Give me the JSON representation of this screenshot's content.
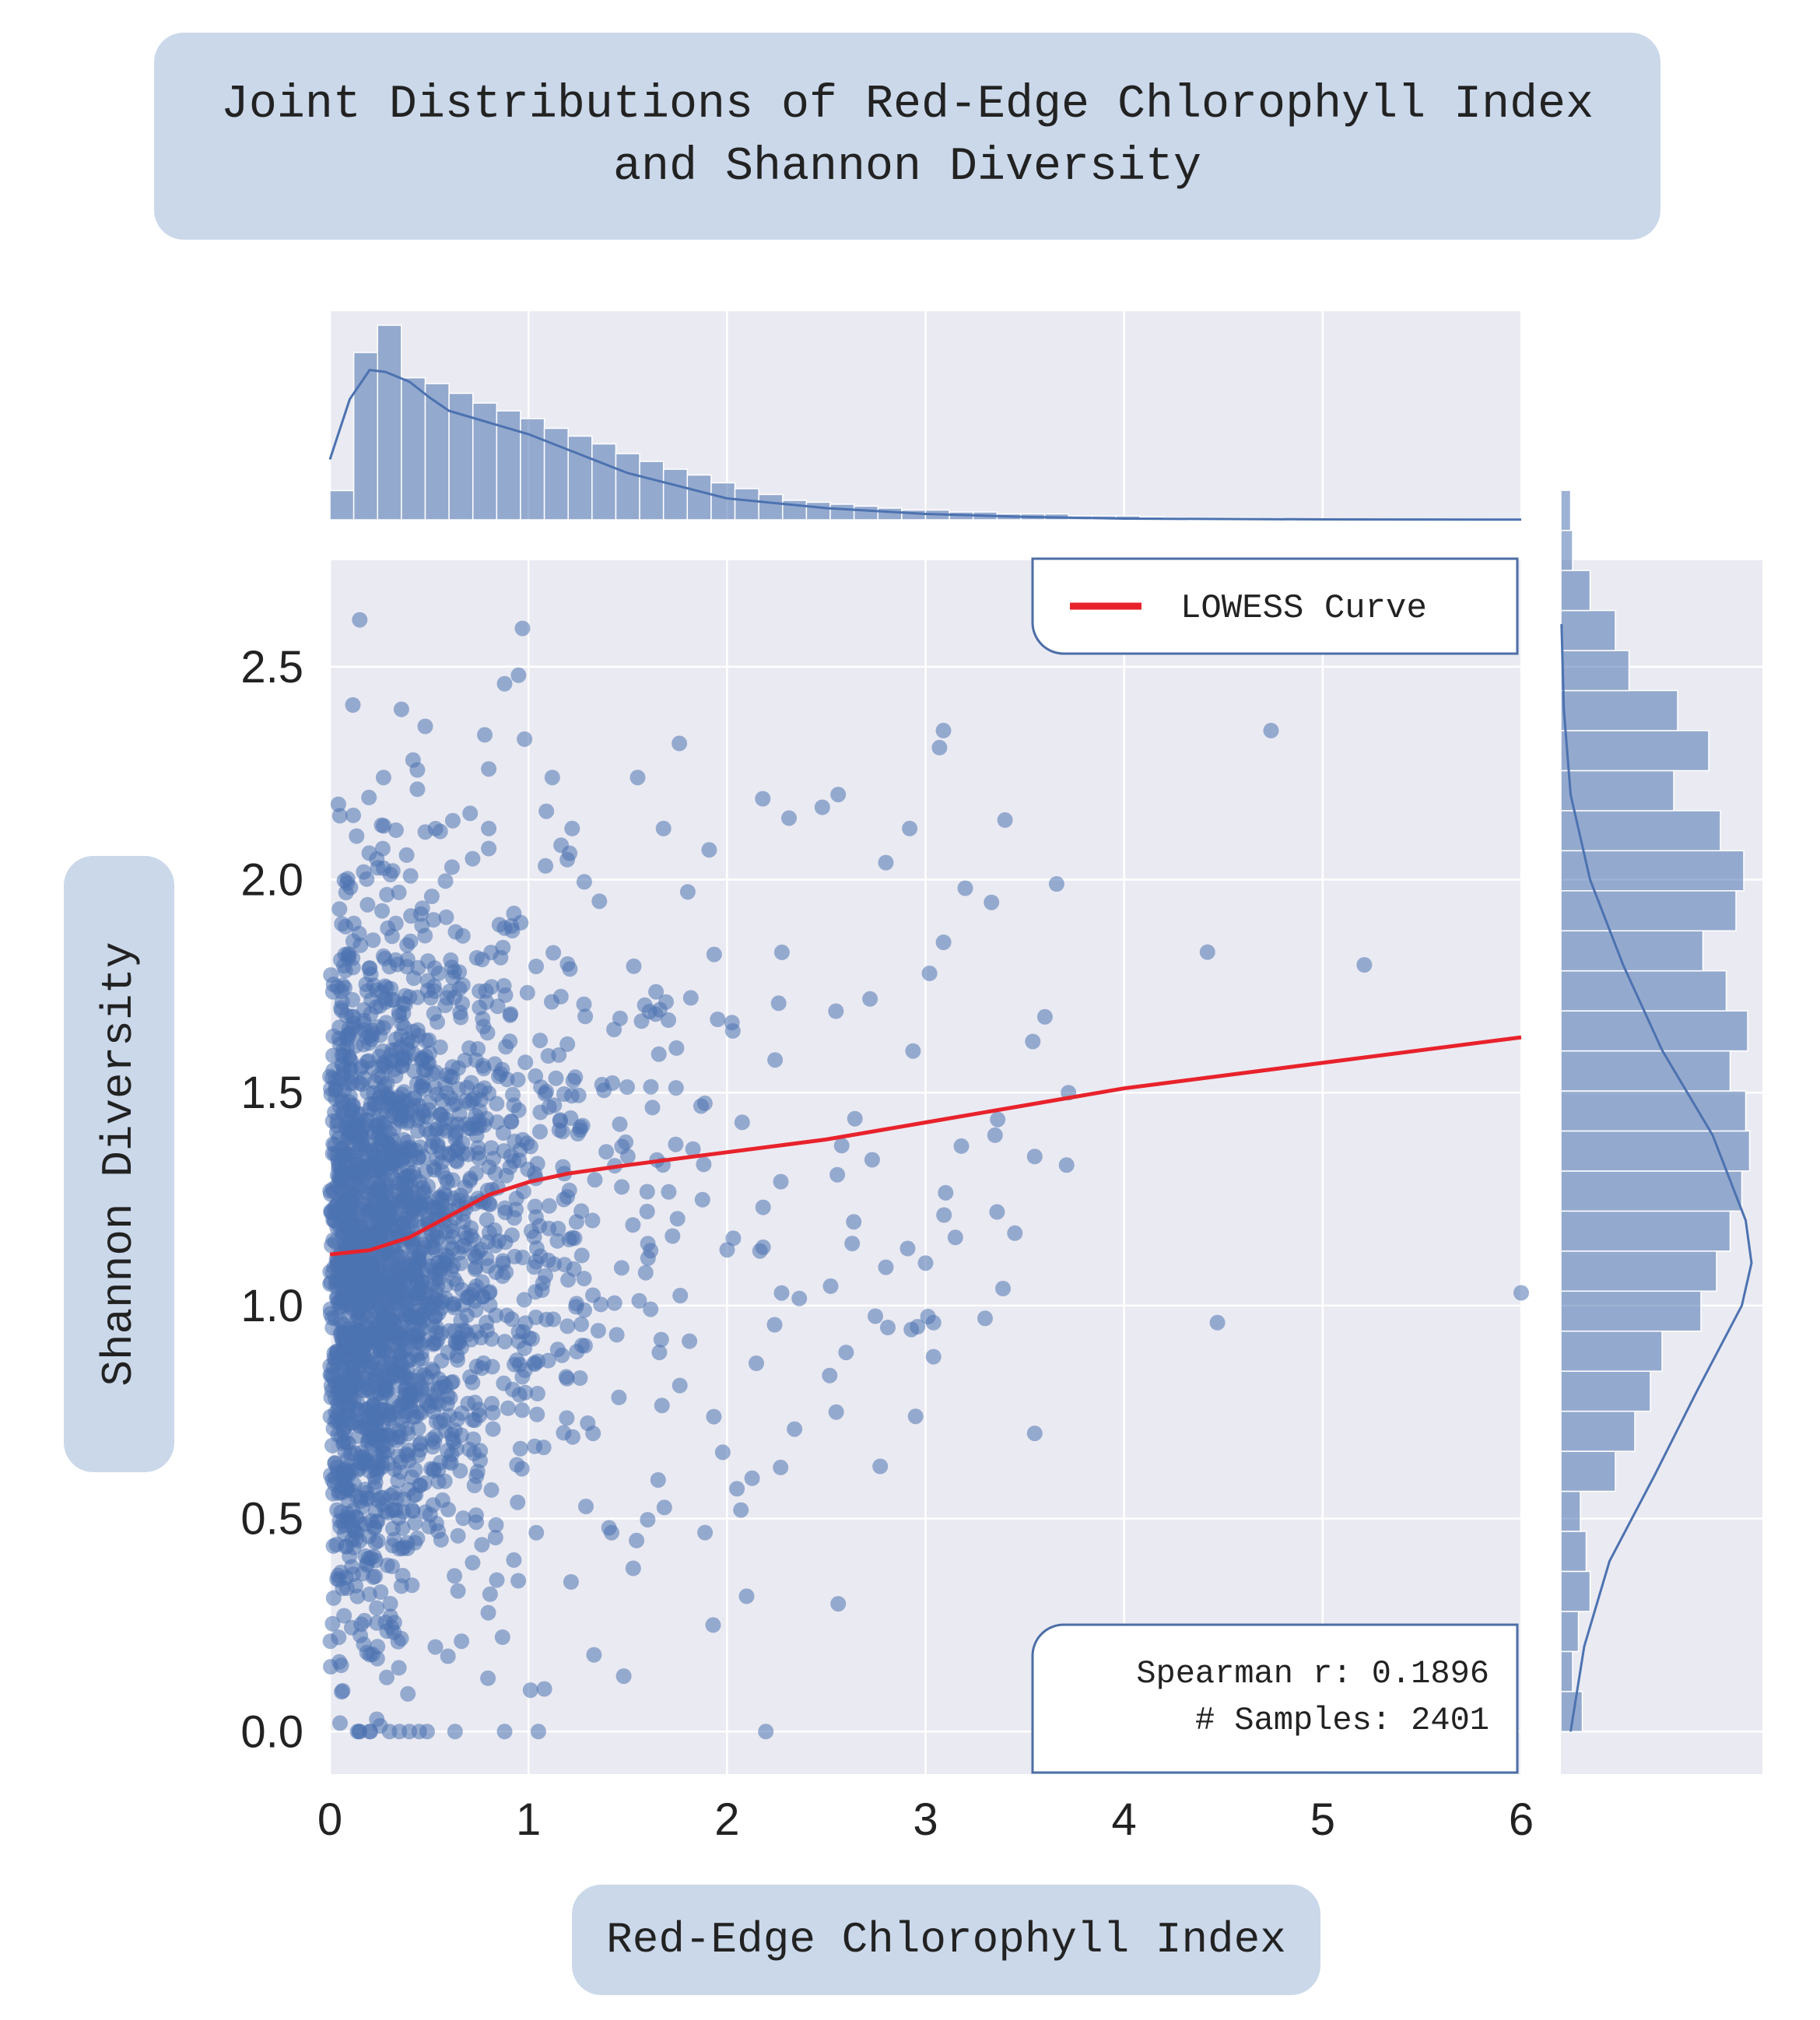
{
  "chart_data": {
    "type": "scatter",
    "title_lines": [
      "Joint Distributions of Red-Edge Chlorophyll Index",
      "and Shannon Diversity"
    ],
    "xlabel": "Red-Edge Chlorophyll Index",
    "ylabel": "Shannon Diversity",
    "xlim": [
      0,
      6
    ],
    "ylim": [
      -0.1,
      2.75
    ],
    "x_ticks": [
      0,
      1,
      2,
      3,
      4,
      5,
      6
    ],
    "x_tick_labels": [
      "0",
      "1",
      "2",
      "3",
      "4",
      "5",
      "6"
    ],
    "y_ticks": [
      0.0,
      0.5,
      1.0,
      1.5,
      2.0,
      2.5
    ],
    "y_tick_labels": [
      "0.0",
      "0.5",
      "1.0",
      "1.5",
      "2.0",
      "2.5"
    ],
    "grid": true,
    "colors": {
      "scatter": "#4c72b0",
      "lowess": "#e8222b",
      "background": "#eaeaf2",
      "label_box": "#cad8ea"
    },
    "legend": {
      "position": "top-right",
      "entries": [
        "LOWESS Curve"
      ]
    },
    "annotation": {
      "position": "bottom-right",
      "lines": [
        "Spearman r: 0.1896",
        "# Samples: 2401"
      ]
    },
    "stats": {
      "spearman_r": 0.1896,
      "n_samples": 2401
    },
    "lowess": {
      "x": [
        0,
        0.2,
        0.4,
        0.6,
        0.8,
        1.0,
        1.2,
        1.5,
        2.0,
        2.5,
        3.0,
        3.5,
        4.0,
        5.0,
        6.0
      ],
      "y": [
        1.12,
        1.13,
        1.16,
        1.21,
        1.26,
        1.29,
        1.31,
        1.33,
        1.36,
        1.39,
        1.43,
        1.47,
        1.51,
        1.57,
        1.63
      ]
    },
    "sample_points": [
      [
        0.15,
        2.61
      ],
      [
        0.97,
        2.59
      ],
      [
        0.95,
        2.48
      ],
      [
        0.88,
        2.46
      ],
      [
        0.36,
        2.4
      ],
      [
        0.48,
        2.36
      ],
      [
        0.78,
        2.34
      ],
      [
        0.98,
        2.33
      ],
      [
        1.76,
        2.32
      ],
      [
        3.09,
        2.35
      ],
      [
        3.07,
        2.31
      ],
      [
        4.74,
        2.35
      ],
      [
        0.27,
        2.24
      ],
      [
        0.8,
        2.26
      ],
      [
        1.12,
        2.24
      ],
      [
        1.55,
        2.24
      ],
      [
        2.18,
        2.19
      ],
      [
        2.56,
        2.2
      ],
      [
        2.48,
        2.17
      ],
      [
        3.4,
        2.14
      ],
      [
        0.05,
        2.15
      ],
      [
        0.8,
        2.12
      ],
      [
        1.22,
        2.12
      ],
      [
        1.68,
        2.12
      ],
      [
        1.91,
        2.07
      ],
      [
        2.92,
        2.12
      ],
      [
        2.8,
        2.04
      ],
      [
        3.66,
        1.99
      ],
      [
        3.2,
        1.98
      ],
      [
        4.42,
        1.83
      ],
      [
        5.21,
        1.8
      ],
      [
        3.02,
        1.78
      ],
      [
        2.72,
        1.72
      ],
      [
        2.26,
        1.71
      ],
      [
        3.54,
        1.62
      ],
      [
        3.72,
        1.5
      ],
      [
        3.71,
        1.33
      ],
      [
        3.55,
        1.35
      ],
      [
        3.35,
        1.4
      ],
      [
        3.36,
        1.22
      ],
      [
        3.15,
        1.16
      ],
      [
        3.45,
        1.17
      ],
      [
        3.0,
        1.1
      ],
      [
        2.8,
        1.09
      ],
      [
        3.39,
        1.04
      ],
      [
        3.04,
        0.96
      ],
      [
        3.3,
        0.97
      ],
      [
        3.04,
        0.88
      ],
      [
        4.47,
        0.96
      ],
      [
        6.0,
        1.03
      ],
      [
        2.95,
        0.74
      ],
      [
        3.55,
        0.7
      ],
      [
        2.6,
        0.89
      ],
      [
        2.55,
        0.75
      ],
      [
        2.34,
        0.71
      ],
      [
        2.27,
        0.62
      ],
      [
        2.05,
        0.57
      ],
      [
        2.07,
        0.52
      ],
      [
        1.93,
        0.25
      ],
      [
        2.56,
        0.3
      ],
      [
        1.48,
        0.13
      ],
      [
        1.33,
        0.18
      ],
      [
        1.08,
        0.1
      ],
      [
        1.05,
        0.0
      ],
      [
        0.88,
        0.0
      ],
      [
        0.63,
        0.0
      ],
      [
        0.4,
        0.0
      ],
      [
        0.3,
        0.0
      ],
      [
        0.2,
        0.0
      ],
      [
        0.15,
        0.0
      ],
      [
        0.45,
        0.0
      ],
      [
        0.35,
        0.0
      ]
    ],
    "random_seed": 7,
    "top_histogram": {
      "bin_width": 0.12,
      "heights_relative": [
        0.15,
        0.86,
        1.0,
        0.73,
        0.7,
        0.65,
        0.6,
        0.56,
        0.52,
        0.47,
        0.43,
        0.39,
        0.34,
        0.3,
        0.26,
        0.23,
        0.19,
        0.16,
        0.13,
        0.1,
        0.09,
        0.08,
        0.07,
        0.06,
        0.05,
        0.05,
        0.04,
        0.04,
        0.03,
        0.03,
        0.03,
        0.02,
        0.02,
        0.02,
        0.015,
        0.01,
        0.01,
        0.01,
        0.01,
        0.008
      ],
      "kde_x": [
        0,
        0.1,
        0.2,
        0.28,
        0.4,
        0.5,
        0.6,
        0.8,
        1.0,
        1.2,
        1.5,
        2.0,
        2.5,
        3.0,
        3.5,
        4.0,
        5.0,
        6.0
      ],
      "kde_rel": [
        0.31,
        0.62,
        0.77,
        0.76,
        0.71,
        0.63,
        0.56,
        0.5,
        0.44,
        0.36,
        0.24,
        0.11,
        0.06,
        0.03,
        0.015,
        0.006,
        0.002,
        0.001
      ]
    },
    "right_histogram": {
      "bin_width": 0.094,
      "bin_start": 0.0,
      "counts_relative": [
        0.11,
        0.06,
        0.09,
        0.15,
        0.13,
        0.1,
        0.28,
        0.38,
        0.46,
        0.52,
        0.72,
        0.8,
        0.87,
        0.93,
        0.97,
        0.95,
        0.87,
        0.96,
        0.85,
        0.73,
        0.9,
        0.94,
        0.82,
        0.58,
        0.76,
        0.6,
        0.35,
        0.28,
        0.15,
        0.06,
        0.05
      ],
      "kde_y": [
        0.0,
        0.2,
        0.4,
        0.6,
        0.8,
        1.0,
        1.1,
        1.2,
        1.4,
        1.6,
        1.8,
        2.0,
        2.2,
        2.4,
        2.6
      ],
      "kde_rel": [
        0.05,
        0.12,
        0.25,
        0.48,
        0.7,
        0.93,
        0.98,
        0.95,
        0.78,
        0.52,
        0.32,
        0.15,
        0.05,
        0.015,
        0.003
      ]
    }
  }
}
